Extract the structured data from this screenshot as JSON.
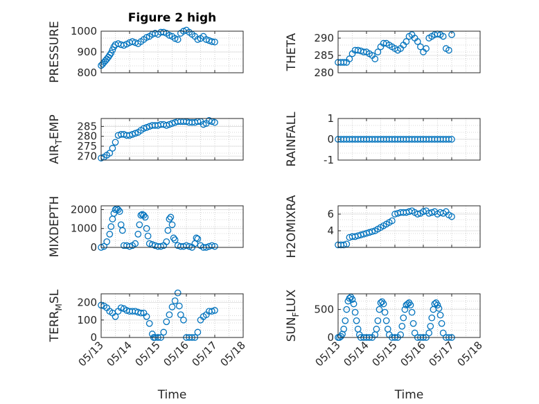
{
  "figure_title": "Figure 2 high",
  "colors": {
    "marker": "#0072BD",
    "axis": "#262626",
    "grid": "#b0b0b0"
  },
  "chart_data": [
    {
      "type": "scatter",
      "ylabel": "PRESSURE",
      "title": "Figure 2 high",
      "ylim": [
        800,
        1000
      ],
      "yticks": [
        800,
        900,
        1000
      ],
      "x": [
        0,
        0.05,
        0.1,
        0.15,
        0.2,
        0.25,
        0.3,
        0.35,
        0.4,
        0.45,
        0.5,
        0.6,
        0.7,
        0.8,
        0.9,
        1.0,
        1.1,
        1.2,
        1.3,
        1.4,
        1.5,
        1.6,
        1.7,
        1.8,
        1.9,
        2.0,
        2.1,
        2.2,
        2.3,
        2.4,
        2.5,
        2.6,
        2.7,
        2.8,
        2.9,
        3.0,
        3.1,
        3.2,
        3.3,
        3.4,
        3.5,
        3.6,
        3.7,
        3.8,
        3.9,
        4.0
      ],
      "y": [
        835,
        842,
        850,
        858,
        866,
        875,
        885,
        895,
        910,
        925,
        935,
        940,
        935,
        932,
        938,
        945,
        950,
        945,
        940,
        950,
        960,
        970,
        975,
        985,
        990,
        985,
        995,
        995,
        990,
        980,
        975,
        965,
        960,
        990,
        1000,
        1005,
        995,
        985,
        975,
        960,
        965,
        975,
        960,
        955,
        950,
        948
      ],
      "grid": true
    },
    {
      "type": "scatter",
      "ylabel": "THETA",
      "ylim": [
        280,
        292
      ],
      "yticks": [
        280,
        285,
        290
      ],
      "x": [
        0,
        0.1,
        0.2,
        0.3,
        0.4,
        0.5,
        0.6,
        0.7,
        0.8,
        0.9,
        1.0,
        1.1,
        1.2,
        1.3,
        1.4,
        1.5,
        1.6,
        1.7,
        1.8,
        1.9,
        2.0,
        2.1,
        2.2,
        2.3,
        2.4,
        2.5,
        2.6,
        2.7,
        2.8,
        2.9,
        3.0,
        3.1,
        3.2,
        3.3,
        3.4,
        3.5,
        3.6,
        3.7,
        3.8,
        3.9,
        4.0
      ],
      "y": [
        283,
        283,
        283,
        283,
        284,
        285.5,
        286.5,
        286.5,
        286.3,
        286,
        286,
        285.5,
        285,
        284,
        286,
        287.5,
        288.5,
        288.5,
        288,
        287.5,
        287,
        286.5,
        287,
        288,
        289,
        290.5,
        291,
        290,
        289,
        287.5,
        286,
        287,
        290,
        290.5,
        291,
        291.2,
        291,
        290.5,
        287,
        286.5,
        291
      ],
      "grid": true
    },
    {
      "type": "scatter",
      "ylabel": "AIR_TEMP",
      "ylim": [
        268,
        289
      ],
      "yticks": [
        270,
        275,
        280,
        285
      ],
      "x": [
        0,
        0.1,
        0.2,
        0.3,
        0.4,
        0.5,
        0.6,
        0.7,
        0.8,
        0.9,
        1.0,
        1.1,
        1.2,
        1.3,
        1.4,
        1.5,
        1.6,
        1.7,
        1.8,
        1.9,
        2.0,
        2.1,
        2.2,
        2.3,
        2.4,
        2.5,
        2.6,
        2.7,
        2.8,
        2.9,
        3.0,
        3.1,
        3.2,
        3.3,
        3.4,
        3.5,
        3.6,
        3.7,
        3.8,
        3.9,
        4.0
      ],
      "y": [
        269,
        269.5,
        270.5,
        271.5,
        274,
        277,
        280.5,
        281,
        281,
        280.5,
        280.5,
        281,
        281.5,
        282,
        283,
        284,
        284.5,
        285,
        285.5,
        285.5,
        285.5,
        286,
        286,
        285.5,
        286,
        286.5,
        287,
        287.5,
        287.5,
        287.5,
        287.5,
        287,
        287,
        287,
        287.5,
        287.5,
        286,
        286.5,
        288,
        287.5,
        287
      ],
      "grid": true
    },
    {
      "type": "scatter",
      "ylabel": "RAINFALL",
      "ylim": [
        -1,
        1
      ],
      "yticks": [
        -1,
        0,
        1
      ],
      "x": [
        0,
        0.1,
        0.2,
        0.3,
        0.4,
        0.5,
        0.6,
        0.7,
        0.8,
        0.9,
        1.0,
        1.1,
        1.2,
        1.3,
        1.4,
        1.5,
        1.6,
        1.7,
        1.8,
        1.9,
        2.0,
        2.1,
        2.2,
        2.3,
        2.4,
        2.5,
        2.6,
        2.7,
        2.8,
        2.9,
        3.0,
        3.1,
        3.2,
        3.3,
        3.4,
        3.5,
        3.6,
        3.7,
        3.8,
        3.9,
        4.0
      ],
      "y": [
        0,
        0,
        0,
        0,
        0,
        0,
        0,
        0,
        0,
        0,
        0,
        0,
        0,
        0,
        0,
        0,
        0,
        0,
        0,
        0,
        0,
        0,
        0,
        0,
        0,
        0,
        0,
        0,
        0,
        0,
        0,
        0,
        0,
        0,
        0,
        0,
        0,
        0,
        0,
        0,
        0
      ],
      "grid": true
    },
    {
      "type": "scatter",
      "ylabel": "MIXDEPTH",
      "ylim": [
        0,
        2200
      ],
      "yticks": [
        0,
        1000,
        2000
      ],
      "x": [
        0,
        0.1,
        0.2,
        0.3,
        0.35,
        0.4,
        0.45,
        0.5,
        0.55,
        0.6,
        0.65,
        0.7,
        0.75,
        0.8,
        0.9,
        1.0,
        1.1,
        1.2,
        1.3,
        1.35,
        1.4,
        1.45,
        1.5,
        1.55,
        1.6,
        1.65,
        1.7,
        1.8,
        1.9,
        2.0,
        2.1,
        2.2,
        2.3,
        2.35,
        2.4,
        2.45,
        2.5,
        2.55,
        2.6,
        2.7,
        2.8,
        2.9,
        3.0,
        3.1,
        3.2,
        3.3,
        3.35,
        3.4,
        3.5,
        3.6,
        3.7,
        3.8,
        3.9,
        4.0
      ],
      "y": [
        0,
        50,
        300,
        700,
        1100,
        1500,
        1800,
        2000,
        2050,
        2000,
        1900,
        1200,
        900,
        100,
        100,
        50,
        100,
        200,
        700,
        1200,
        1700,
        1750,
        1700,
        1600,
        1000,
        600,
        200,
        150,
        100,
        50,
        50,
        100,
        300,
        900,
        1500,
        1600,
        1200,
        500,
        400,
        100,
        50,
        50,
        100,
        50,
        0,
        200,
        500,
        450,
        100,
        0,
        0,
        50,
        100,
        50
      ],
      "grid": true
    },
    {
      "type": "scatter",
      "ylabel": "H2OMIXRA",
      "ylim": [
        2,
        7
      ],
      "yticks": [
        4,
        6
      ],
      "x": [
        0,
        0.1,
        0.2,
        0.3,
        0.4,
        0.5,
        0.6,
        0.7,
        0.8,
        0.9,
        1.0,
        1.1,
        1.2,
        1.3,
        1.4,
        1.5,
        1.6,
        1.7,
        1.8,
        1.9,
        2.0,
        2.1,
        2.2,
        2.3,
        2.4,
        2.5,
        2.6,
        2.7,
        2.8,
        2.9,
        3.0,
        3.1,
        3.2,
        3.3,
        3.4,
        3.5,
        3.6,
        3.7,
        3.8,
        3.9,
        4.0
      ],
      "y": [
        2.3,
        2.3,
        2.3,
        2.4,
        3.2,
        3.3,
        3.3,
        3.4,
        3.5,
        3.6,
        3.7,
        3.8,
        3.9,
        4.0,
        4.2,
        4.4,
        4.6,
        4.8,
        5.0,
        5.2,
        6.0,
        6.1,
        6.2,
        6.2,
        6.2,
        6.3,
        6.4,
        6.2,
        6.0,
        6.1,
        6.3,
        6.4,
        6.1,
        6.2,
        6.3,
        6.0,
        6.2,
        6.1,
        6.3,
        5.9,
        5.7
      ],
      "grid": true
    },
    {
      "type": "scatter",
      "ylabel": "TERR_MSL",
      "ylim": [
        0,
        250
      ],
      "yticks": [
        0,
        100,
        200
      ],
      "x": [
        0,
        0.1,
        0.2,
        0.3,
        0.4,
        0.5,
        0.6,
        0.7,
        0.8,
        0.9,
        1.0,
        1.1,
        1.2,
        1.3,
        1.4,
        1.5,
        1.6,
        1.7,
        1.8,
        1.85,
        1.9,
        2.0,
        2.1,
        2.2,
        2.3,
        2.4,
        2.5,
        2.6,
        2.7,
        2.75,
        2.8,
        2.9,
        3.0,
        3.1,
        3.2,
        3.3,
        3.4,
        3.5,
        3.6,
        3.7,
        3.8,
        3.9,
        4.0
      ],
      "y": [
        185,
        180,
        170,
        150,
        140,
        120,
        150,
        170,
        165,
        155,
        150,
        150,
        150,
        145,
        140,
        140,
        120,
        80,
        20,
        0,
        0,
        0,
        0,
        30,
        90,
        130,
        175,
        210,
        255,
        180,
        130,
        100,
        0,
        0,
        0,
        0,
        30,
        100,
        120,
        130,
        150,
        150,
        155
      ],
      "grid": true
    },
    {
      "type": "scatter",
      "ylabel": "SUN_FLUX",
      "ylim": [
        0,
        780
      ],
      "yticks": [
        0,
        500
      ],
      "x": [
        0,
        0.05,
        0.1,
        0.15,
        0.2,
        0.25,
        0.3,
        0.35,
        0.4,
        0.45,
        0.5,
        0.55,
        0.6,
        0.65,
        0.7,
        0.75,
        0.8,
        0.9,
        1.0,
        1.1,
        1.2,
        1.3,
        1.35,
        1.4,
        1.45,
        1.5,
        1.55,
        1.6,
        1.65,
        1.7,
        1.75,
        1.8,
        1.9,
        2.0,
        2.1,
        2.2,
        2.25,
        2.3,
        2.35,
        2.4,
        2.45,
        2.5,
        2.55,
        2.6,
        2.65,
        2.7,
        2.8,
        2.9,
        3.0,
        3.1,
        3.2,
        3.25,
        3.3,
        3.35,
        3.4,
        3.45,
        3.5,
        3.55,
        3.6,
        3.65,
        3.7,
        3.8,
        3.9,
        4.0
      ],
      "y": [
        0,
        0,
        20,
        60,
        150,
        300,
        500,
        650,
        700,
        720,
        680,
        600,
        450,
        300,
        150,
        50,
        0,
        0,
        0,
        0,
        0,
        50,
        150,
        300,
        500,
        620,
        640,
        600,
        450,
        300,
        150,
        50,
        0,
        0,
        0,
        50,
        200,
        350,
        500,
        580,
        600,
        620,
        580,
        450,
        250,
        80,
        0,
        0,
        0,
        0,
        80,
        200,
        350,
        500,
        600,
        620,
        580,
        520,
        400,
        250,
        80,
        0,
        0,
        0
      ],
      "grid": true
    }
  ],
  "x_ticklabels": [
    "05/13",
    "05/14",
    "05/15",
    "05/16",
    "05/17",
    "05/18"
  ],
  "xlabel": "Time"
}
